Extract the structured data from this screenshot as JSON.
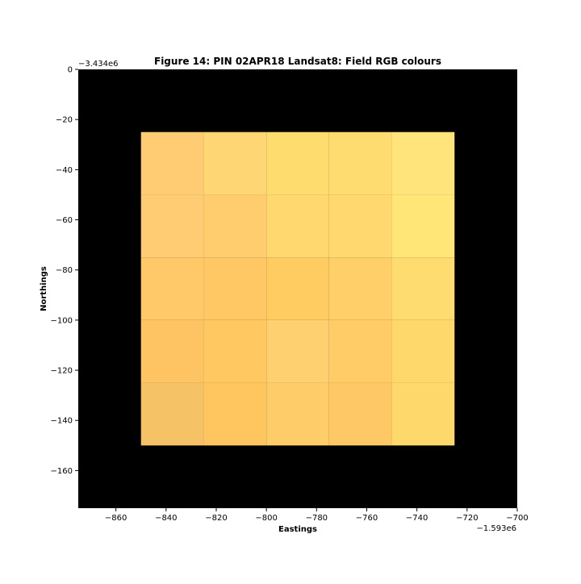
{
  "chart_data": {
    "type": "heatmap",
    "title": "Figure 14: PIN 02APR18  Landsat8: Field RGB colours",
    "xlabel": "Eastings",
    "ylabel": "Northings",
    "x_offset_label": "−1.593e6",
    "y_offset_label": "−3.434e6",
    "xlim": [
      -875,
      -700
    ],
    "ylim": [
      -175,
      0
    ],
    "background_color": "#000000",
    "x_ticks": [
      {
        "value": -860,
        "label": "−860"
      },
      {
        "value": -840,
        "label": "−840"
      },
      {
        "value": -820,
        "label": "−820"
      },
      {
        "value": -800,
        "label": "−800"
      },
      {
        "value": -780,
        "label": "−780"
      },
      {
        "value": -760,
        "label": "−760"
      },
      {
        "value": -740,
        "label": "−740"
      },
      {
        "value": -720,
        "label": "−720"
      },
      {
        "value": -700,
        "label": "−700"
      }
    ],
    "y_ticks": [
      {
        "value": 0,
        "label": "0"
      },
      {
        "value": -20,
        "label": "−20"
      },
      {
        "value": -40,
        "label": "−40"
      },
      {
        "value": -60,
        "label": "−60"
      },
      {
        "value": -80,
        "label": "−80"
      },
      {
        "value": -100,
        "label": "−100"
      },
      {
        "value": -120,
        "label": "−120"
      },
      {
        "value": -140,
        "label": "−140"
      },
      {
        "value": -160,
        "label": "−160"
      }
    ],
    "grid": false,
    "cell_x_edges": [
      -850,
      -825,
      -800,
      -775,
      -750,
      -725
    ],
    "cell_y_edges": [
      -25,
      -50,
      -75,
      -100,
      -125,
      -150
    ],
    "cell_colors": [
      [
        "#ffcc74",
        "#ffd674",
        "#ffdc6e",
        "#ffdc70",
        "#ffe47c"
      ],
      [
        "#ffcc74",
        "#ffcc6e",
        "#ffd870",
        "#ffd870",
        "#ffe676"
      ],
      [
        "#ffc868",
        "#ffc864",
        "#ffcc62",
        "#ffd06a",
        "#ffdc70"
      ],
      [
        "#fec464",
        "#ffc860",
        "#ffd070",
        "#ffcc68",
        "#ffd86c"
      ],
      [
        "#f5c266",
        "#ffc660",
        "#ffcc6a",
        "#ffc866",
        "#ffd86c"
      ]
    ]
  }
}
